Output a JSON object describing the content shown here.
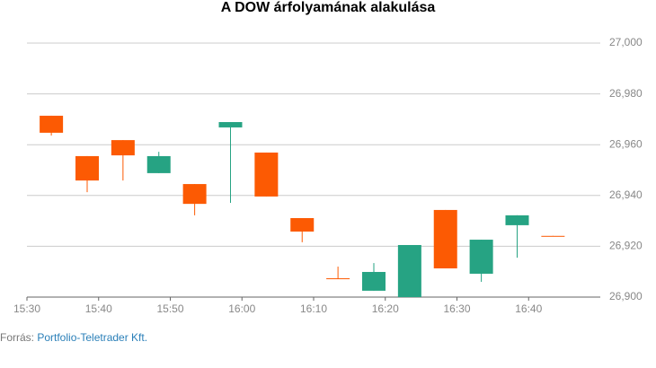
{
  "chart_data": {
    "type": "candlestick",
    "title": "A DOW árfolyamának alakulása",
    "x": [
      933.4,
      938.4,
      943.4,
      948.4,
      953.4,
      958.4,
      963.4,
      968.4,
      973.4,
      978.4,
      983.4,
      988.4,
      993.4,
      998.4,
      1003.4
    ],
    "series": [
      {
        "open": [
          26971.4,
          26955.5,
          26961.8,
          26948.8,
          26944.5,
          26966.8,
          26956.9,
          26931.1,
          26907.4,
          26902.5,
          26900.0,
          26934.3,
          26909.2,
          26928.3,
          26924.1
        ],
        "high": [
          26971.4,
          26955.5,
          26961.8,
          26957.2,
          26944.5,
          26968.9,
          26956.9,
          26931.1,
          26912.0,
          26913.4,
          26920.5,
          26934.3,
          26922.6,
          26932.2,
          26924.1
        ],
        "low": [
          26963.6,
          26941.3,
          26945.9,
          26948.8,
          26932.2,
          26937.1,
          26939.6,
          26921.6,
          26907.1,
          26902.5,
          26900.0,
          26911.3,
          26906.0,
          26915.5,
          26924.0
        ],
        "close": [
          26964.7,
          26945.9,
          26955.8,
          26955.5,
          26936.7,
          26968.9,
          26939.6,
          26925.8,
          26907.1,
          26909.9,
          26920.5,
          26911.3,
          26922.6,
          26932.2,
          26924.0
        ]
      }
    ],
    "up_color": "#26a383",
    "down_color": "#fc5a03",
    "xlim": [
      930,
      1010
    ],
    "xticks": [
      {
        "value": 930,
        "label": "15:30"
      },
      {
        "value": 940,
        "label": "15:40"
      },
      {
        "value": 950,
        "label": "15:50"
      },
      {
        "value": 960,
        "label": "16:00"
      },
      {
        "value": 970,
        "label": "16:10"
      },
      {
        "value": 980,
        "label": "16:20"
      },
      {
        "value": 990,
        "label": "16:30"
      },
      {
        "value": 1000,
        "label": "16:40"
      }
    ],
    "ylim": [
      26900,
      27000
    ],
    "yticks": [
      {
        "value": 26900,
        "label": "26,900"
      },
      {
        "value": 26920,
        "label": "26,920"
      },
      {
        "value": 26940,
        "label": "26,940"
      },
      {
        "value": 26960,
        "label": "26,960"
      },
      {
        "value": 26980,
        "label": "26,980"
      },
      {
        "value": 27000,
        "label": "27,000"
      }
    ],
    "grid": true,
    "source_label": "Forrás: ",
    "source": "Portfolio-Teletrader Kft."
  }
}
